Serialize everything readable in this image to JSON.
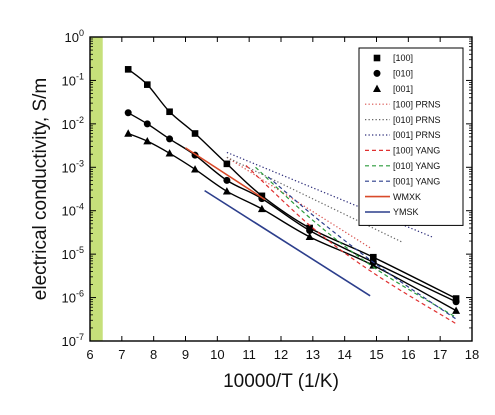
{
  "chart_data": {
    "type": "scatter",
    "xlabel": "10000/T (1/K)",
    "ylabel": "electrical conductivity, S/m",
    "xlim": [
      6,
      18
    ],
    "ylim_log10": [
      -7,
      0
    ],
    "y_scale": "log",
    "x_ticks": [
      "6",
      "7",
      "8",
      "9",
      "10",
      "11",
      "12",
      "13",
      "14",
      "15",
      "16",
      "17",
      "18"
    ],
    "y_ticks": [
      {
        "base": "10",
        "exp": "-7"
      },
      {
        "base": "10",
        "exp": "-6"
      },
      {
        "base": "10",
        "exp": "-5"
      },
      {
        "base": "10",
        "exp": "-4"
      },
      {
        "base": "10",
        "exp": "-3"
      },
      {
        "base": "10",
        "exp": "-2"
      },
      {
        "base": "10",
        "exp": "-1"
      },
      {
        "base": "10",
        "exp": "0"
      }
    ],
    "legend_placement": "top-right",
    "highlight_band": {
      "x": [
        6,
        6.4
      ],
      "color": "#c6e07a"
    },
    "series": [
      {
        "name": "[100]",
        "kind": "marker",
        "marker": "square",
        "color": "#000000",
        "x": [
          7.2,
          7.8,
          8.5,
          9.3,
          10.3,
          11.4,
          12.9,
          14.9,
          17.5
        ],
        "y": [
          0.18,
          0.08,
          0.019,
          0.006,
          0.0012,
          0.00022,
          4e-05,
          8.5e-06,
          9.5e-07
        ]
      },
      {
        "name": "[010]",
        "kind": "marker",
        "marker": "circle",
        "color": "#000000",
        "x": [
          7.2,
          7.8,
          8.5,
          9.3,
          10.3,
          11.4,
          12.9,
          14.9,
          17.5
        ],
        "y": [
          0.018,
          0.01,
          0.0045,
          0.0019,
          0.0005,
          0.00019,
          3.5e-05,
          6.5e-06,
          8e-07
        ]
      },
      {
        "name": "[001]",
        "kind": "marker",
        "marker": "triangle",
        "color": "#000000",
        "x": [
          7.2,
          7.8,
          8.5,
          9.3,
          10.3,
          11.4,
          12.9,
          14.9,
          17.5
        ],
        "y": [
          0.006,
          0.004,
          0.0021,
          0.0009,
          0.00028,
          0.00011,
          2.5e-05,
          5.5e-06,
          5e-07
        ]
      },
      {
        "name": "[100] PRNS",
        "kind": "line",
        "dash": "dotted",
        "color": "#d9534f",
        "x": [
          10.3,
          14.8
        ],
        "y": [
          0.0017,
          1.4e-05
        ]
      },
      {
        "name": "[010] PRNS",
        "kind": "line",
        "dash": "dotted",
        "color": "#666666",
        "x": [
          10.3,
          15.8
        ],
        "y": [
          0.0017,
          1.9e-05
        ]
      },
      {
        "name": "[001] PRNS",
        "kind": "line",
        "dash": "dotted",
        "color": "#2d2d7a",
        "x": [
          10.3,
          16.8
        ],
        "y": [
          0.0022,
          2.4e-05
        ]
      },
      {
        "name": "[100] YANG",
        "kind": "line",
        "dash": "dashed",
        "color": "#e03030",
        "x": [
          10.9,
          13.0,
          15.0,
          17.5
        ],
        "y": [
          0.0011,
          4e-05,
          3.3e-06,
          2.5e-07
        ]
      },
      {
        "name": "[010] YANG",
        "kind": "line",
        "dash": "dashed",
        "color": "#2a9a3a",
        "x": [
          11.2,
          13.0,
          15.0,
          17.5
        ],
        "y": [
          0.001,
          6e-05,
          4.5e-06,
          3.5e-07
        ]
      },
      {
        "name": "[001] YANG",
        "kind": "line",
        "dash": "dashed",
        "color": "#2c3e8c",
        "x": [
          11.6,
          13.2,
          15.2,
          17.5
        ],
        "y": [
          0.0006,
          6e-05,
          4.5e-06,
          3.2e-07
        ]
      },
      {
        "name": "WMXK",
        "kind": "line",
        "dash": "solid",
        "color": "#d94a2a",
        "x": [
          9.0,
          11.5
        ],
        "y": [
          0.0028,
          0.00018
        ]
      },
      {
        "name": "YMSK",
        "kind": "line",
        "dash": "solid",
        "color": "#2c3e8c",
        "x": [
          9.6,
          14.8
        ],
        "y": [
          0.00029,
          1.1e-06
        ]
      }
    ]
  }
}
